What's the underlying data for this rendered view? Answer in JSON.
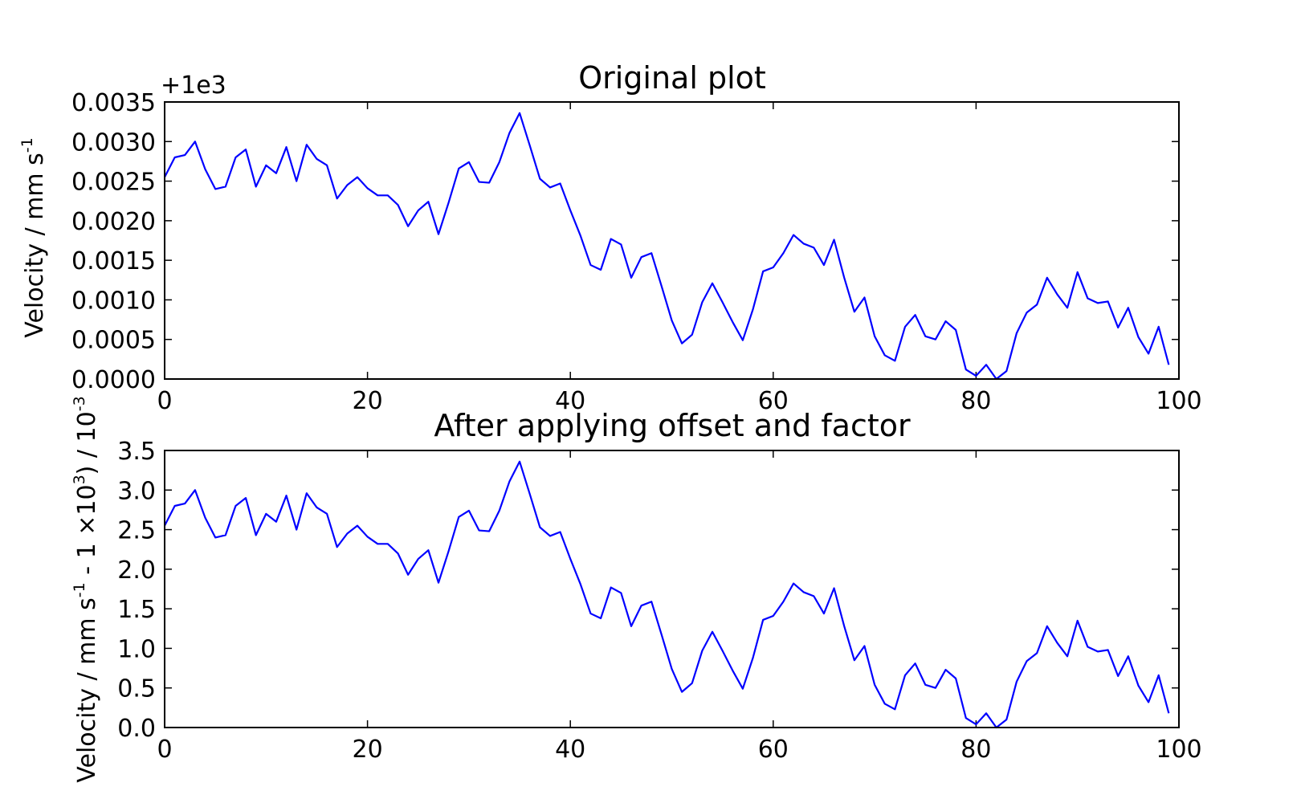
{
  "chart_data": [
    {
      "type": "line",
      "title": "Original plot",
      "ylabel": "Velocity / mm s",
      "ylabel_sup": "-1",
      "offset_text": "+1e3",
      "xlim": [
        0,
        100
      ],
      "ylim": [
        0,
        0.0035
      ],
      "x_ticks": [
        "0",
        "20",
        "40",
        "60",
        "80",
        "100"
      ],
      "y_ticks": [
        "0.0000",
        "0.0005",
        "0.0010",
        "0.0015",
        "0.0020",
        "0.0025",
        "0.0030",
        "0.0035"
      ],
      "series": [
        {
          "color": "#0000ff",
          "x": [
            0,
            1,
            2,
            3,
            4,
            5,
            6,
            7,
            8,
            9,
            10,
            11,
            12,
            13,
            14,
            15,
            16,
            17,
            18,
            19,
            20,
            21,
            22,
            23,
            24,
            25,
            26,
            27,
            28,
            29,
            30,
            31,
            32,
            33,
            34,
            35,
            36,
            37,
            38,
            39,
            40,
            41,
            42,
            43,
            44,
            45,
            46,
            47,
            48,
            49,
            50,
            51,
            52,
            53,
            54,
            55,
            56,
            57,
            58,
            59,
            60,
            61,
            62,
            63,
            64,
            65,
            66,
            67,
            68,
            69,
            70,
            71,
            72,
            73,
            74,
            75,
            76,
            77,
            78,
            79,
            80,
            81,
            82,
            83,
            84,
            85,
            86,
            87,
            88,
            89,
            90,
            91,
            92,
            93,
            94,
            95,
            96,
            97,
            98,
            99
          ],
          "y": [
            1000.00255,
            1000.0028,
            1000.00283,
            1000.003,
            1000.00265,
            1000.0024,
            1000.00243,
            1000.0028,
            1000.0029,
            1000.00243,
            1000.0027,
            1000.0026,
            1000.00293,
            1000.0025,
            1000.00296,
            1000.00278,
            1000.0027,
            1000.00228,
            1000.00245,
            1000.00255,
            1000.00241,
            1000.00232,
            1000.00232,
            1000.0022,
            1000.00193,
            1000.00213,
            1000.00224,
            1000.00183,
            1000.00223,
            1000.00266,
            1000.00274,
            1000.00249,
            1000.00248,
            1000.00274,
            1000.00311,
            1000.00336,
            1000.00295,
            1000.00253,
            1000.00242,
            1000.00247,
            1000.00213,
            1000.00181,
            1000.00144,
            1000.00138,
            1000.00177,
            1000.0017,
            1000.00128,
            1000.00154,
            1000.00159,
            1000.00117,
            1000.00074,
            1000.00045,
            1000.00056,
            1000.00097,
            1000.00121,
            1000.00097,
            1000.00072,
            1000.00049,
            1000.00088,
            1000.00136,
            1000.00141,
            1000.00159,
            1000.00182,
            1000.00171,
            1000.00166,
            1000.00144,
            1000.00176,
            1000.00128,
            1000.00085,
            1000.00103,
            1000.00054,
            1000.0003,
            1000.00023,
            1000.00066,
            1000.00081,
            1000.00054,
            1000.0005,
            1000.00073,
            1000.00062,
            1000.00012,
            1000.00004,
            1000.00018,
            1000.0,
            1000.0001,
            1000.00058,
            1000.00084,
            1000.00094,
            1000.00128,
            1000.00107,
            1000.0009,
            1000.00135,
            1000.00102,
            1000.00096,
            1000.00098,
            1000.00065,
            1000.0009,
            1000.00053,
            1000.00032,
            1000.00066,
            1000.00018
          ]
        }
      ]
    },
    {
      "type": "line",
      "title": "After applying offset and factor",
      "ylabel_pre": "Velocity / mm s",
      "ylabel_sup1": "-1",
      "ylabel_mid": " - 1 ×10",
      "ylabel_sup2": "3",
      "ylabel_post": ") / 10",
      "ylabel_sup3": "-3",
      "xlim": [
        0,
        100
      ],
      "ylim": [
        0,
        3.5
      ],
      "x_ticks": [
        "0",
        "20",
        "40",
        "60",
        "80",
        "100"
      ],
      "y_ticks": [
        "0.0",
        "0.5",
        "1.0",
        "1.5",
        "2.0",
        "2.5",
        "3.0",
        "3.5"
      ],
      "series": [
        {
          "color": "#0000ff",
          "x": [
            0,
            1,
            2,
            3,
            4,
            5,
            6,
            7,
            8,
            9,
            10,
            11,
            12,
            13,
            14,
            15,
            16,
            17,
            18,
            19,
            20,
            21,
            22,
            23,
            24,
            25,
            26,
            27,
            28,
            29,
            30,
            31,
            32,
            33,
            34,
            35,
            36,
            37,
            38,
            39,
            40,
            41,
            42,
            43,
            44,
            45,
            46,
            47,
            48,
            49,
            50,
            51,
            52,
            53,
            54,
            55,
            56,
            57,
            58,
            59,
            60,
            61,
            62,
            63,
            64,
            65,
            66,
            67,
            68,
            69,
            70,
            71,
            72,
            73,
            74,
            75,
            76,
            77,
            78,
            79,
            80,
            81,
            82,
            83,
            84,
            85,
            86,
            87,
            88,
            89,
            90,
            91,
            92,
            93,
            94,
            95,
            96,
            97,
            98,
            99
          ],
          "y": [
            2.55,
            2.8,
            2.83,
            3.0,
            2.65,
            2.4,
            2.43,
            2.8,
            2.9,
            2.43,
            2.7,
            2.6,
            2.93,
            2.5,
            2.96,
            2.78,
            2.7,
            2.28,
            2.45,
            2.55,
            2.41,
            2.32,
            2.32,
            2.2,
            1.93,
            2.13,
            2.24,
            1.83,
            2.23,
            2.66,
            2.74,
            2.49,
            2.48,
            2.74,
            3.11,
            3.36,
            2.95,
            2.53,
            2.42,
            2.47,
            2.13,
            1.81,
            1.44,
            1.38,
            1.77,
            1.7,
            1.28,
            1.54,
            1.59,
            1.17,
            0.74,
            0.45,
            0.56,
            0.97,
            1.21,
            0.97,
            0.72,
            0.49,
            0.88,
            1.36,
            1.41,
            1.59,
            1.82,
            1.71,
            1.66,
            1.44,
            1.76,
            1.28,
            0.85,
            1.03,
            0.54,
            0.3,
            0.23,
            0.66,
            0.81,
            0.54,
            0.5,
            0.73,
            0.62,
            0.12,
            0.04,
            0.18,
            0.0,
            0.1,
            0.58,
            0.84,
            0.94,
            1.28,
            1.07,
            0.9,
            1.35,
            1.02,
            0.96,
            0.98,
            0.65,
            0.9,
            0.53,
            0.32,
            0.66,
            0.18
          ]
        }
      ]
    }
  ]
}
